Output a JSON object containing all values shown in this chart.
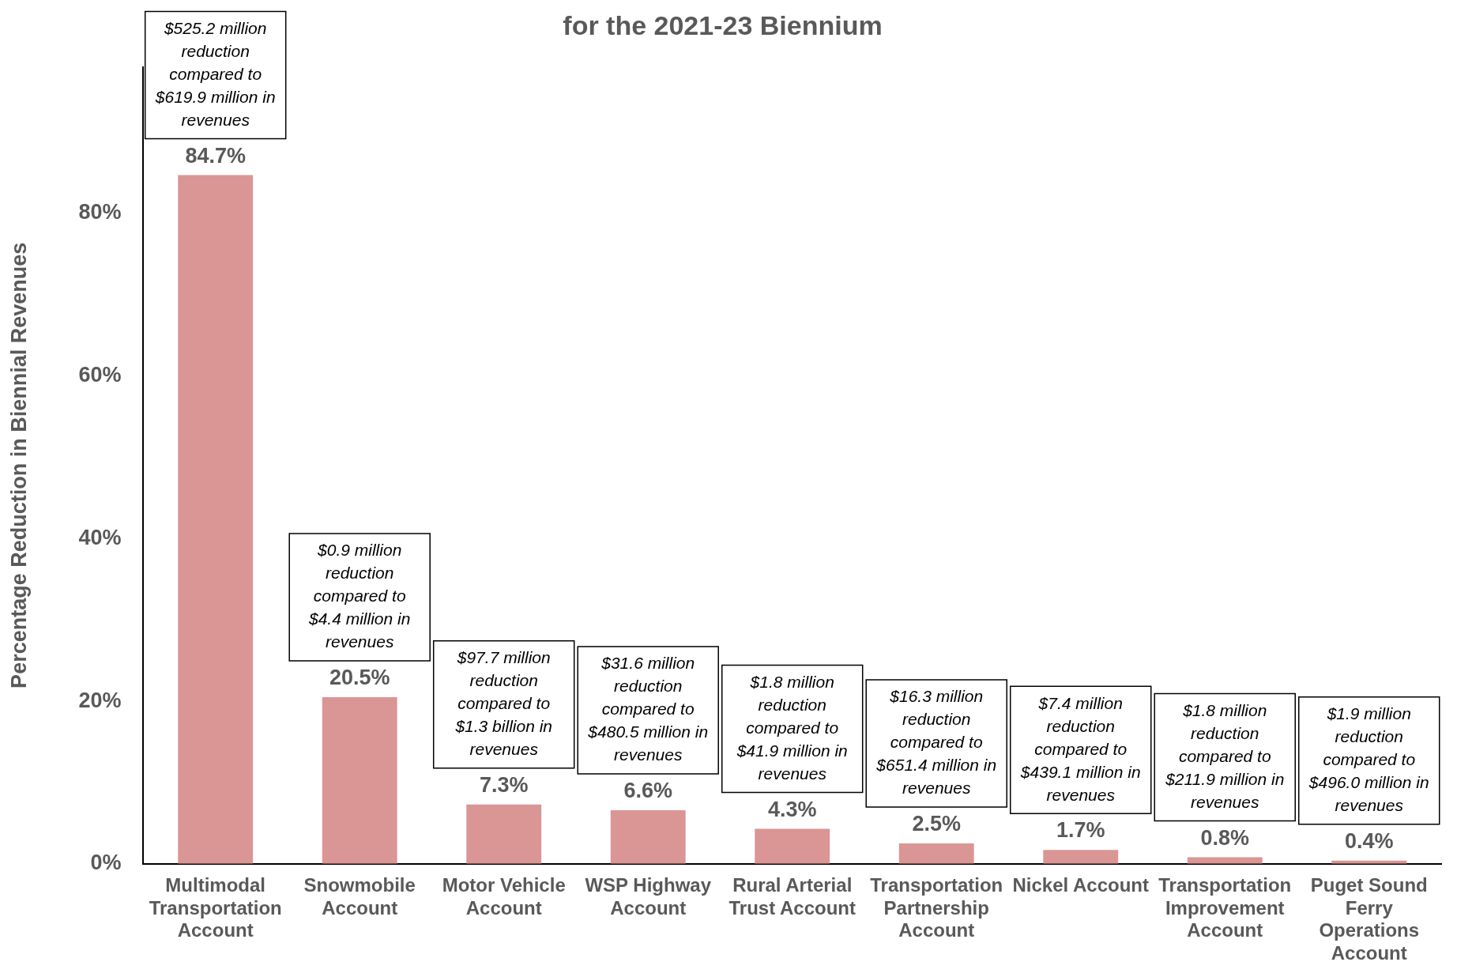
{
  "chart_data": {
    "type": "bar",
    "title": "for the 2021-23 Biennium",
    "ylabel": "Percentage Reduction in Biennial Revenues",
    "categories": [
      "Multimodal Transportation Account",
      "Snowmobile Account",
      "Motor Vehicle Account",
      "WSP Highway Account",
      "Rural Arterial Trust Account",
      "Transportation Partnership Account",
      "Nickel Account",
      "Transportation Improvement Account",
      "Puget Sound Ferry Operations Account"
    ],
    "values": [
      84.7,
      20.5,
      7.3,
      6.6,
      4.3,
      2.5,
      1.7,
      0.8,
      0.4
    ],
    "value_labels": [
      "84.7%",
      "20.5%",
      "7.3%",
      "6.6%",
      "4.3%",
      "2.5%",
      "1.7%",
      "0.8%",
      "0.4%"
    ],
    "color": "#da9694",
    "ylim": [
      0,
      98
    ],
    "yticks": [
      {
        "value": 0,
        "label": "0%"
      },
      {
        "value": 20,
        "label": "20%"
      },
      {
        "value": 40,
        "label": "40%"
      },
      {
        "value": 60,
        "label": "60%"
      },
      {
        "value": 80,
        "label": "80%"
      }
    ],
    "annotations": [
      {
        "text": "$525.2 million reduction compared to $619.9 million in revenues",
        "x": "Multimodal Transportation Account",
        "y": 84.7
      },
      {
        "text": "$0.9 million reduction compared to $4.4 million in revenues",
        "x": "Snowmobile Account",
        "y": 20.5
      },
      {
        "text": "$97.7 million reduction compared to $1.3 billion in revenues",
        "x": "Motor Vehicle Account",
        "y": 7.3
      },
      {
        "text": "$31.6 million reduction compared to $480.5 million in revenues",
        "x": "WSP Highway Account",
        "y": 6.6
      },
      {
        "text": "$1.8 million reduction compared to $41.9 million in revenues",
        "x": "Rural Arterial Trust Account",
        "y": 4.3
      },
      {
        "text": "$16.3 million reduction compared to $651.4 million in revenues",
        "x": "Transportation Partnership Account",
        "y": 2.5
      },
      {
        "text": "$7.4 million reduction compared to $439.1 million in revenues",
        "x": "Nickel Account",
        "y": 1.7
      },
      {
        "text": "$1.8 million reduction compared to $211.9 million in revenues",
        "x": "Transportation Improvement Account",
        "y": 0.8
      },
      {
        "text": "$1.9 million reduction compared to $496.0 million in revenues",
        "x": "Puget Sound Ferry Operations Account",
        "y": 0.4
      }
    ]
  }
}
